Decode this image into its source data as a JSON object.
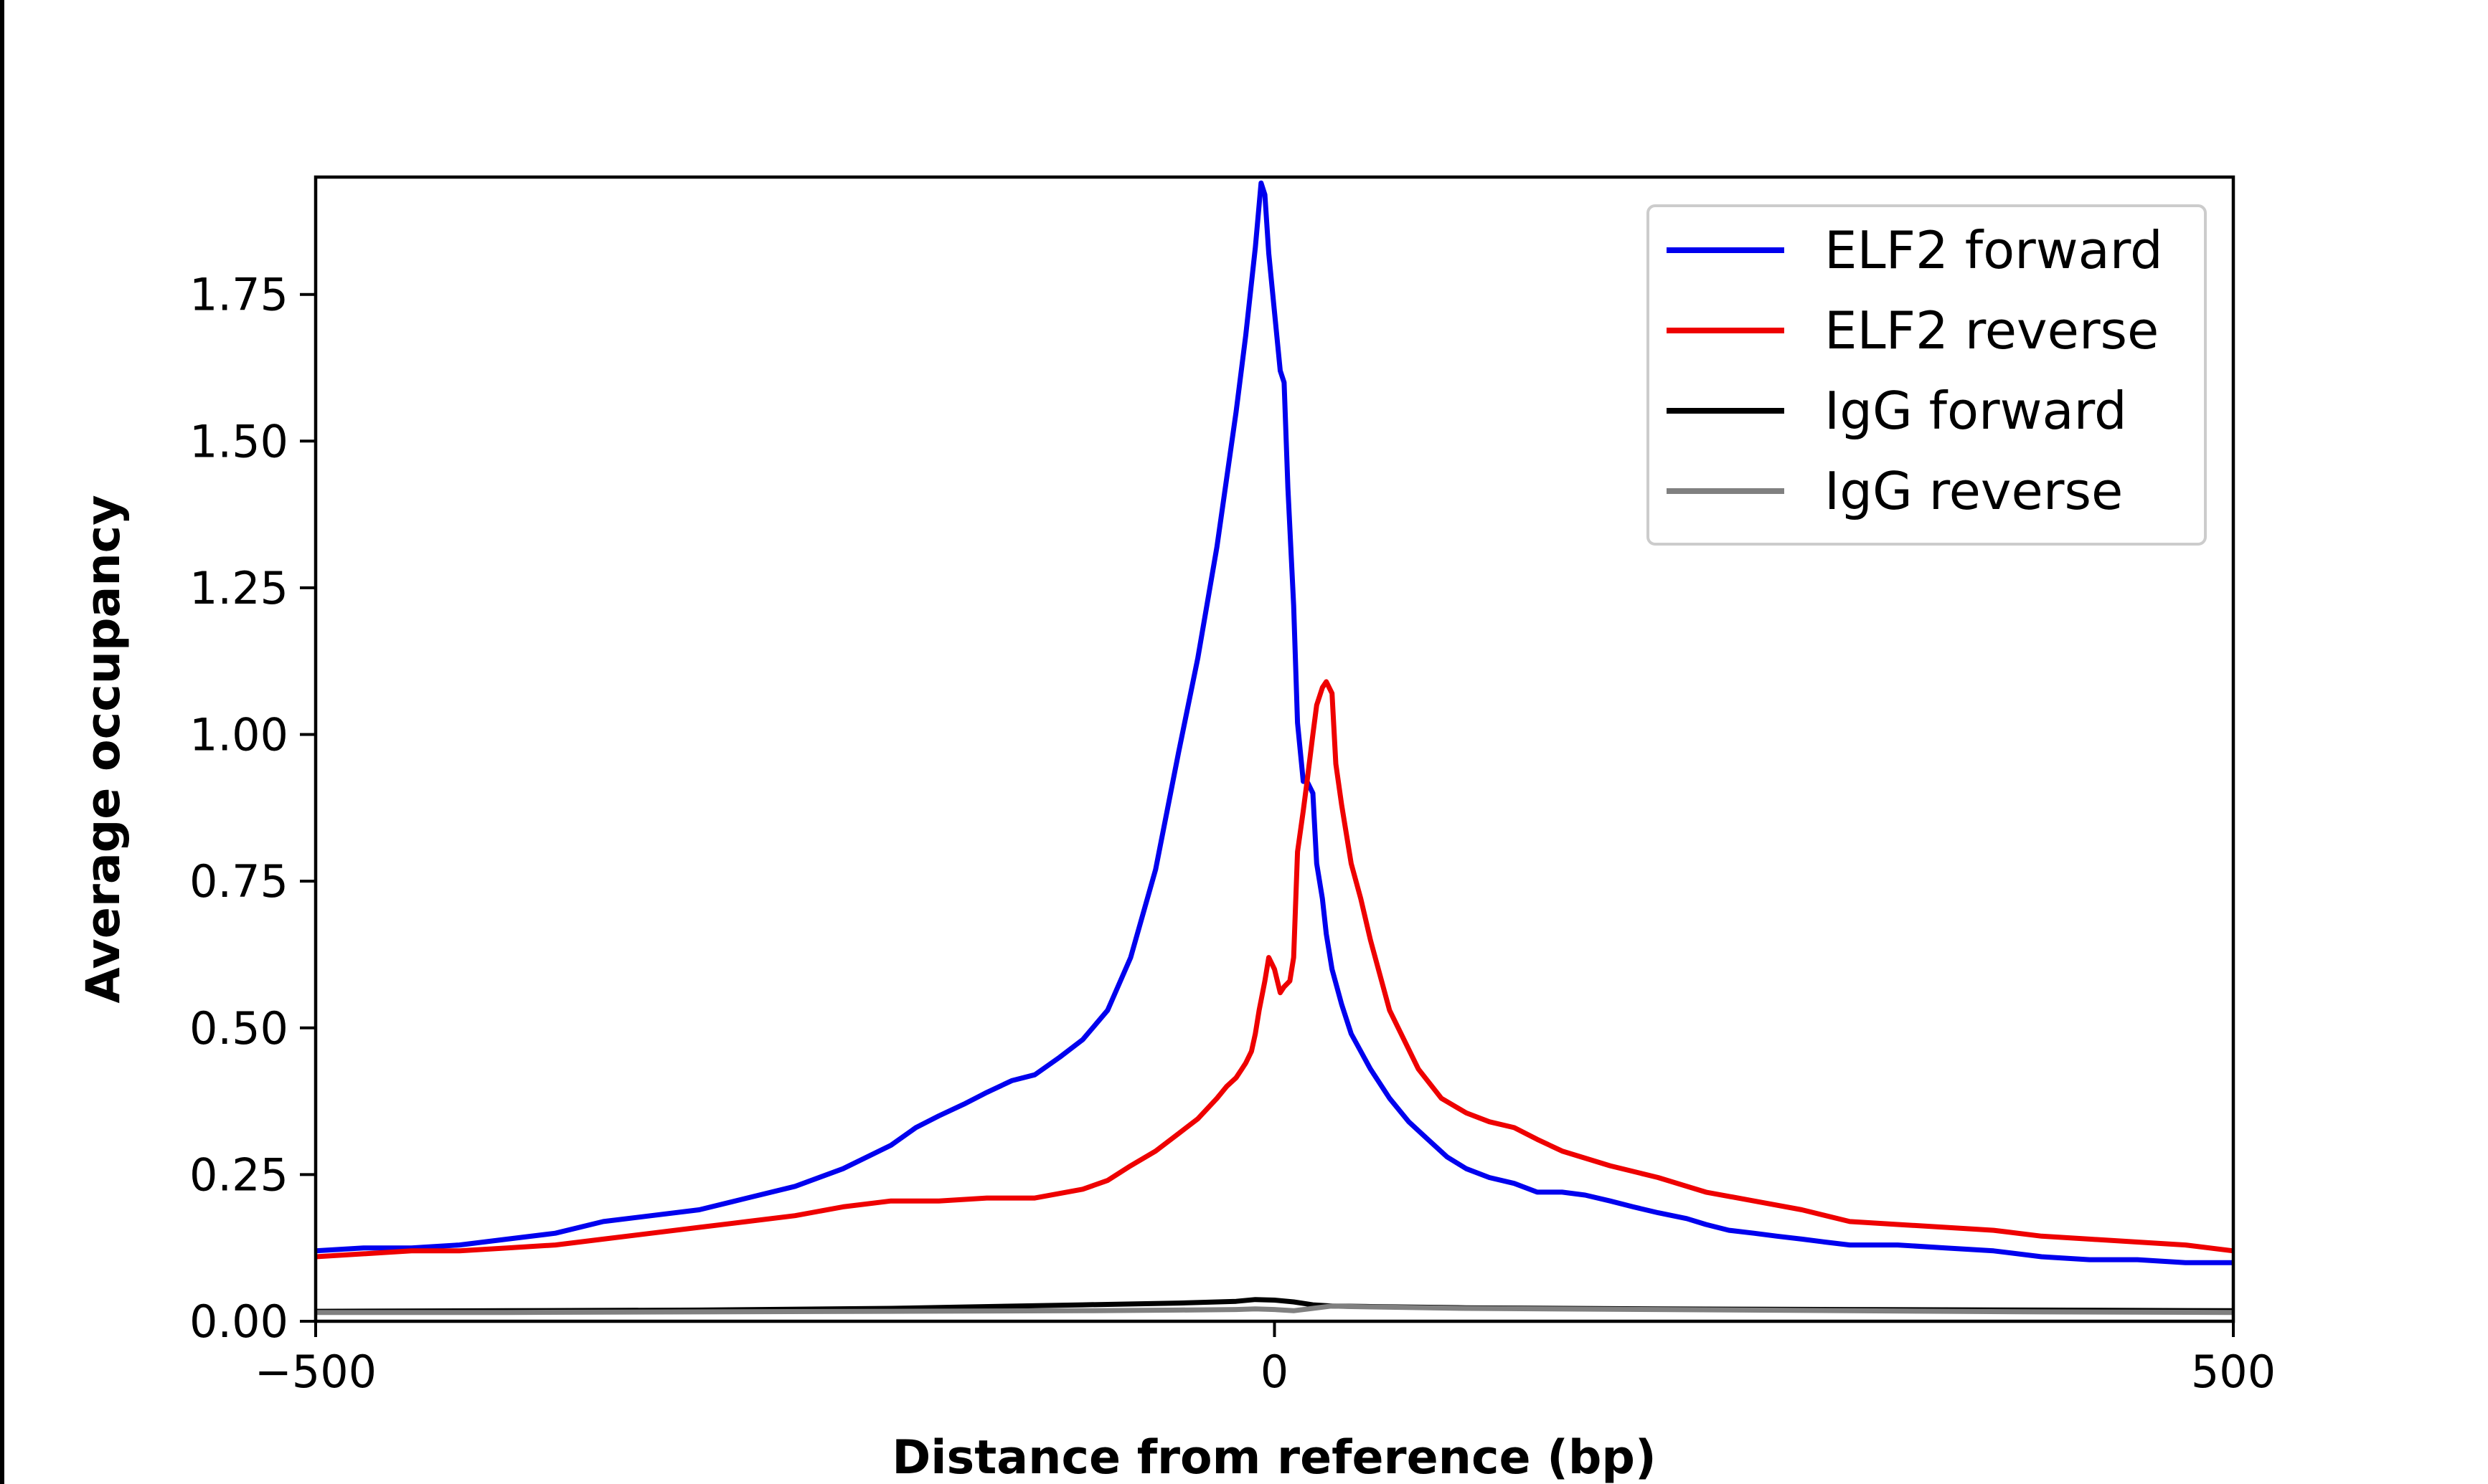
{
  "chart_data": {
    "type": "line",
    "xlabel": "Distance from reference (bp)",
    "ylabel": "Average occupancy",
    "xlim": [
      -500,
      500
    ],
    "ylim": [
      0,
      1.95
    ],
    "x_ticks": [
      -500,
      0,
      500
    ],
    "x_tick_labels": [
      "−500",
      "0",
      "500"
    ],
    "y_ticks": [
      0,
      0.25,
      0.5,
      0.75,
      1.0,
      1.25,
      1.5,
      1.75
    ],
    "y_tick_labels": [
      "0.00",
      "0.25",
      "0.50",
      "0.75",
      "1.00",
      "1.25",
      "1.50",
      "1.75"
    ],
    "grid": false,
    "legend_position": "top-right",
    "series": [
      {
        "name": "ELF2 forward",
        "color": "#0000ee",
        "x": [
          -500,
          -475,
          -450,
          -425,
          -400,
          -375,
          -350,
          -325,
          -300,
          -275,
          -250,
          -225,
          -200,
          -187,
          -175,
          -162,
          -150,
          -137,
          -125,
          -112,
          -100,
          -87,
          -75,
          -62,
          -50,
          -40,
          -30,
          -20,
          -15,
          -10,
          -7,
          -5,
          -3,
          0,
          3,
          5,
          7,
          10,
          12,
          15,
          17,
          20,
          22,
          25,
          27,
          30,
          35,
          40,
          45,
          50,
          60,
          70,
          80,
          90,
          100,
          112,
          125,
          137,
          150,
          162,
          175,
          187,
          200,
          215,
          225,
          237,
          250,
          262,
          275,
          287,
          300,
          325,
          350,
          375,
          400,
          425,
          450,
          475,
          500
        ],
        "y": [
          0.12,
          0.125,
          0.125,
          0.13,
          0.14,
          0.15,
          0.17,
          0.18,
          0.19,
          0.21,
          0.23,
          0.26,
          0.3,
          0.33,
          0.35,
          0.37,
          0.39,
          0.41,
          0.42,
          0.45,
          0.48,
          0.53,
          0.62,
          0.77,
          0.97,
          1.13,
          1.32,
          1.55,
          1.68,
          1.83,
          1.94,
          1.92,
          1.82,
          1.72,
          1.62,
          1.6,
          1.42,
          1.22,
          1.02,
          0.92,
          0.92,
          0.9,
          0.78,
          0.72,
          0.66,
          0.6,
          0.54,
          0.49,
          0.46,
          0.43,
          0.38,
          0.34,
          0.31,
          0.28,
          0.26,
          0.245,
          0.235,
          0.22,
          0.22,
          0.215,
          0.205,
          0.195,
          0.185,
          0.175,
          0.165,
          0.155,
          0.15,
          0.145,
          0.14,
          0.135,
          0.13,
          0.13,
          0.125,
          0.12,
          0.11,
          0.105,
          0.105,
          0.1,
          0.1
        ]
      },
      {
        "name": "ELF2 reverse",
        "color": "#ee0000",
        "x": [
          -500,
          -475,
          -450,
          -425,
          -400,
          -375,
          -350,
          -325,
          -300,
          -275,
          -250,
          -225,
          -200,
          -187,
          -175,
          -150,
          -125,
          -100,
          -87,
          -75,
          -62,
          -50,
          -40,
          -30,
          -25,
          -20,
          -17,
          -15,
          -12,
          -10,
          -8,
          -5,
          -3,
          0,
          3,
          5,
          8,
          10,
          12,
          15,
          17,
          20,
          22,
          25,
          27,
          30,
          32,
          35,
          38,
          40,
          45,
          50,
          60,
          75,
          87,
          100,
          112,
          125,
          137,
          150,
          175,
          200,
          225,
          250,
          275,
          300,
          325,
          350,
          375,
          400,
          425,
          450,
          475,
          500
        ],
        "y": [
          0.11,
          0.115,
          0.12,
          0.12,
          0.125,
          0.13,
          0.14,
          0.15,
          0.16,
          0.17,
          0.18,
          0.195,
          0.205,
          0.205,
          0.205,
          0.21,
          0.21,
          0.225,
          0.24,
          0.265,
          0.29,
          0.32,
          0.345,
          0.38,
          0.4,
          0.415,
          0.43,
          0.44,
          0.46,
          0.49,
          0.53,
          0.58,
          0.62,
          0.6,
          0.56,
          0.57,
          0.58,
          0.62,
          0.8,
          0.87,
          0.92,
          1.0,
          1.05,
          1.08,
          1.09,
          1.07,
          0.95,
          0.88,
          0.82,
          0.78,
          0.72,
          0.65,
          0.53,
          0.43,
          0.38,
          0.355,
          0.34,
          0.33,
          0.31,
          0.29,
          0.265,
          0.245,
          0.22,
          0.205,
          0.19,
          0.17,
          0.165,
          0.16,
          0.155,
          0.145,
          0.14,
          0.135,
          0.13,
          0.12
        ]
      },
      {
        "name": "IgG forward",
        "color": "#000000",
        "x": [
          -500,
          -400,
          -300,
          -200,
          -100,
          -50,
          -20,
          -10,
          0,
          10,
          20,
          30,
          50,
          100,
          200,
          300,
          400,
          500
        ],
        "y": [
          0.017,
          0.018,
          0.019,
          0.022,
          0.028,
          0.031,
          0.034,
          0.037,
          0.036,
          0.033,
          0.028,
          0.026,
          0.025,
          0.023,
          0.021,
          0.02,
          0.019,
          0.018
        ]
      },
      {
        "name": "IgG reverse",
        "color": "#808080",
        "x": [
          -500,
          -400,
          -300,
          -200,
          -100,
          -50,
          -20,
          -10,
          0,
          10,
          20,
          30,
          40,
          60,
          100,
          200,
          300,
          400,
          500
        ],
        "y": [
          0.015,
          0.015,
          0.016,
          0.017,
          0.018,
          0.019,
          0.02,
          0.021,
          0.02,
          0.018,
          0.022,
          0.026,
          0.025,
          0.024,
          0.022,
          0.02,
          0.018,
          0.016,
          0.015
        ]
      }
    ]
  }
}
